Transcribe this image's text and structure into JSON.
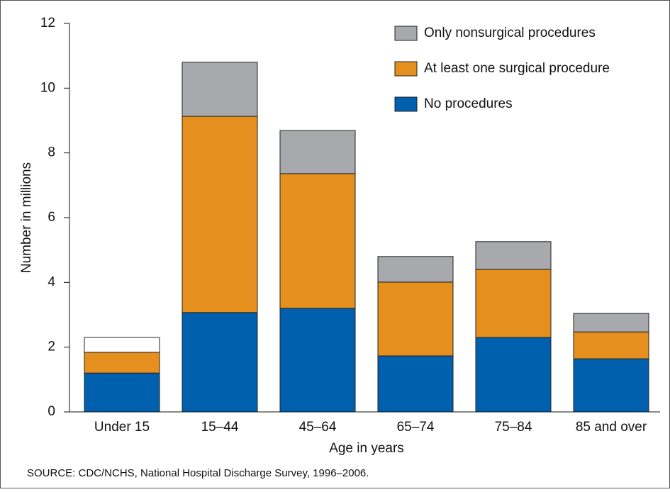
{
  "chart_data": {
    "type": "stacked_bar",
    "categories": [
      "Under 15",
      "15–44",
      "45–64",
      "65–74",
      "75–84",
      "85 and over"
    ],
    "series": [
      {
        "name": "No procedures",
        "color": "#0060ad",
        "values": [
          1.2,
          3.07,
          3.2,
          1.73,
          2.3,
          1.64
        ]
      },
      {
        "name": "At least one surgical procedure",
        "color": "#e5901e",
        "values": [
          0.64,
          6.06,
          4.16,
          2.28,
          2.1,
          0.83
        ]
      },
      {
        "name": "Only nonsurgical procedures",
        "color": "#a7a9ac",
        "colors": [
          "#ffffff",
          "#a7a9ac",
          "#a7a9ac",
          "#a7a9ac",
          "#a7a9ac",
          "#a7a9ac"
        ],
        "values": [
          0.46,
          1.67,
          1.33,
          0.79,
          0.86,
          0.57
        ]
      }
    ],
    "xlabel": "Age in years",
    "ylabel": "Number in millions",
    "ylim": [
      0,
      12
    ],
    "yticks": [
      0,
      2,
      4,
      6,
      8,
      10,
      12
    ],
    "legend": "top-right",
    "source": "SOURCE: CDC/NCHS, National Hospital Discharge Survey, 1996–2006."
  }
}
